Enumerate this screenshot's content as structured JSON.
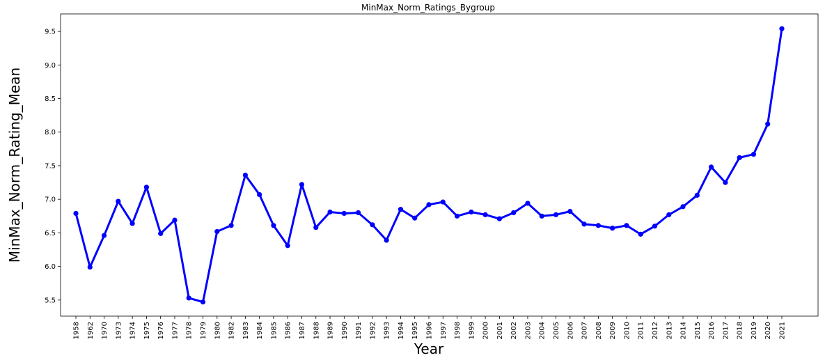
{
  "chart_data": {
    "type": "line",
    "title": "MinMax_Norm_Ratings_Bygroup",
    "xlabel": "Year",
    "ylabel": "MinMax_Norm_Rating_Mean",
    "categories": [
      "1958",
      "1962",
      "1970",
      "1973",
      "1974",
      "1975",
      "1976",
      "1977",
      "1978",
      "1979",
      "1980",
      "1982",
      "1983",
      "1984",
      "1985",
      "1986",
      "1987",
      "1988",
      "1989",
      "1990",
      "1991",
      "1992",
      "1993",
      "1994",
      "1995",
      "1996",
      "1997",
      "1998",
      "1999",
      "2000",
      "2001",
      "2002",
      "2003",
      "2004",
      "2005",
      "2006",
      "2007",
      "2008",
      "2009",
      "2010",
      "2011",
      "2012",
      "2013",
      "2014",
      "2015",
      "2016",
      "2017",
      "2018",
      "2019",
      "2020",
      "2021"
    ],
    "series": [
      {
        "values": [
          6.79,
          5.99,
          6.46,
          6.97,
          6.64,
          7.18,
          6.49,
          6.69,
          5.53,
          5.47,
          6.52,
          6.61,
          7.36,
          7.07,
          6.61,
          6.31,
          7.22,
          6.58,
          6.81,
          6.79,
          6.8,
          6.62,
          6.39,
          6.85,
          6.72,
          6.92,
          6.96,
          6.75,
          6.81,
          6.77,
          6.71,
          6.8,
          6.94,
          6.75,
          6.77,
          6.82,
          6.63,
          6.61,
          6.57,
          6.61,
          6.48,
          6.6,
          6.77,
          6.89,
          7.06,
          7.48,
          7.25,
          7.62,
          7.67,
          8.12,
          9.54
        ],
        "color": "#0000ff"
      }
    ],
    "yticks": [
      5.5,
      6.0,
      6.5,
      7.0,
      7.5,
      8.0,
      8.5,
      9.0,
      9.5
    ],
    "ylim": [
      5.26,
      9.76
    ],
    "grid": false,
    "legend": "none"
  }
}
